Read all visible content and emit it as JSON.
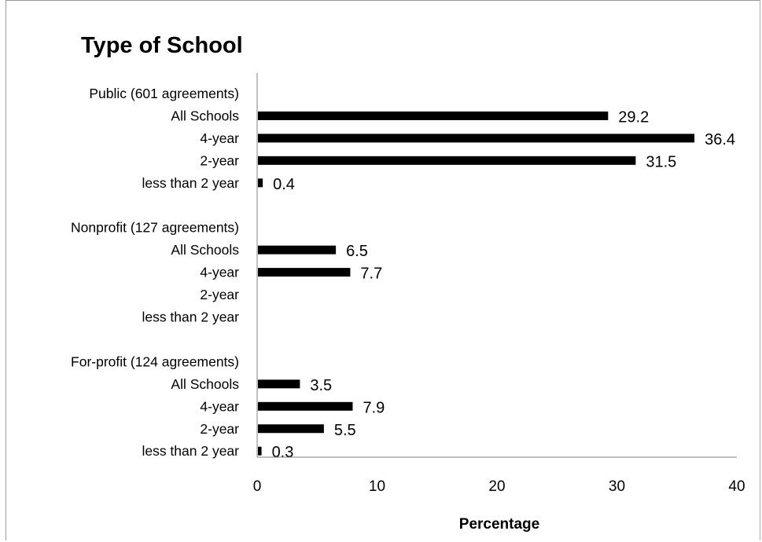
{
  "chart_data": {
    "type": "bar",
    "orientation": "horizontal",
    "title": "Type of School",
    "xlabel": "Percentage",
    "ylabel": "",
    "xlim": [
      0,
      40
    ],
    "xticks": [
      0,
      10,
      20,
      30,
      40
    ],
    "grid": false,
    "legend": "none",
    "bar_color": "#000000",
    "categories": [
      "Public (601 agreements)",
      "All Schools",
      "4-year",
      "2-year",
      "less than 2 year",
      "",
      "Nonprofit (127 agreements)",
      "All Schools",
      "4-year",
      "2-year",
      "less than 2 year",
      "",
      "For-profit (124 agreements)",
      "All Schools",
      "4-year",
      "2-year",
      "less than 2 year"
    ],
    "values": [
      null,
      29.2,
      36.4,
      31.5,
      0.4,
      null,
      null,
      6.5,
      7.7,
      null,
      null,
      null,
      null,
      3.5,
      7.9,
      5.5,
      0.3
    ],
    "data_labels": [
      "",
      "29.2",
      "36.4",
      "31.5",
      "0.4",
      "",
      "",
      "6.5",
      "7.7",
      "",
      "",
      "",
      "",
      "3.5",
      "7.9",
      "5.5",
      "0.3"
    ]
  }
}
